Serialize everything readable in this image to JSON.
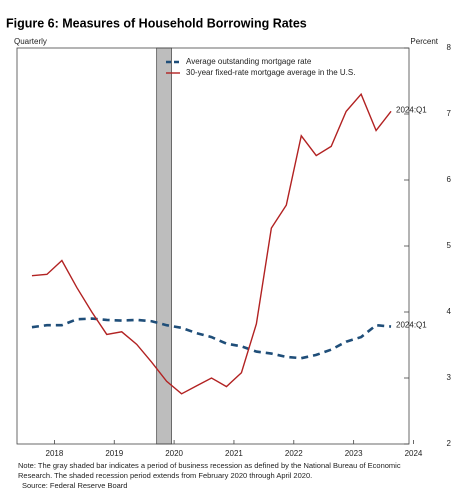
{
  "chart_data": {
    "type": "line",
    "title": "Figure 6: Measures of Household Borrowing Rates",
    "x_label": "Quarterly",
    "y_label": "Percent",
    "x": [
      2018,
      2018.25,
      2018.5,
      2018.75,
      2019,
      2019.25,
      2019.5,
      2019.75,
      2020,
      2020.25,
      2020.5,
      2020.75,
      2021,
      2021.25,
      2021.5,
      2021.75,
      2022,
      2022.25,
      2022.5,
      2022.75,
      2023,
      2023.25,
      2023.5,
      2023.75,
      2024
    ],
    "series": [
      {
        "name": "Average outstanding mortgage rate",
        "color": "#1f4e79",
        "dash": true,
        "end_label": "2024:Q1",
        "values": [
          3.77,
          3.8,
          3.8,
          3.89,
          3.9,
          3.88,
          3.87,
          3.88,
          3.86,
          3.8,
          3.76,
          3.68,
          3.62,
          3.52,
          3.48,
          3.4,
          3.37,
          3.32,
          3.3,
          3.35,
          3.43,
          3.55,
          3.62,
          3.8,
          3.78
        ]
      },
      {
        "name": "30-year fixed-rate mortgage average in the U.S.",
        "color": "#b22222",
        "dash": false,
        "end_label": "2024:Q1",
        "values": [
          4.55,
          4.57,
          4.78,
          4.37,
          4.0,
          3.66,
          3.7,
          3.51,
          3.24,
          2.95,
          2.76,
          2.88,
          3.0,
          2.87,
          3.08,
          3.82,
          5.27,
          5.62,
          6.67,
          6.37,
          6.51,
          7.04,
          7.3,
          6.75,
          7.04
        ]
      }
    ],
    "recession": [
      2020.083,
      2020.333
    ],
    "xlim": [
      2017.75,
      2024.3
    ],
    "xticks": [
      {
        "value": 2018.375,
        "label": "2018"
      },
      {
        "value": 2019.375,
        "label": "2019"
      },
      {
        "value": 2020.375,
        "label": "2020"
      },
      {
        "value": 2021.375,
        "label": "2021"
      },
      {
        "value": 2022.375,
        "label": "2022"
      },
      {
        "value": 2023.375,
        "label": "2023"
      },
      {
        "value": 2024.375,
        "label": "2024"
      }
    ],
    "ylim": [
      2,
      8
    ],
    "yticks": [
      2,
      3,
      4,
      5,
      6,
      7,
      8
    ],
    "notes": [
      "Note: The gray shaded bar indicates a period of business recession as defined by the National Bureau of Economic",
      "Research. The shaded recession period extends from February 2020 through April 2020.",
      "Source: Federal Reserve Board"
    ]
  }
}
